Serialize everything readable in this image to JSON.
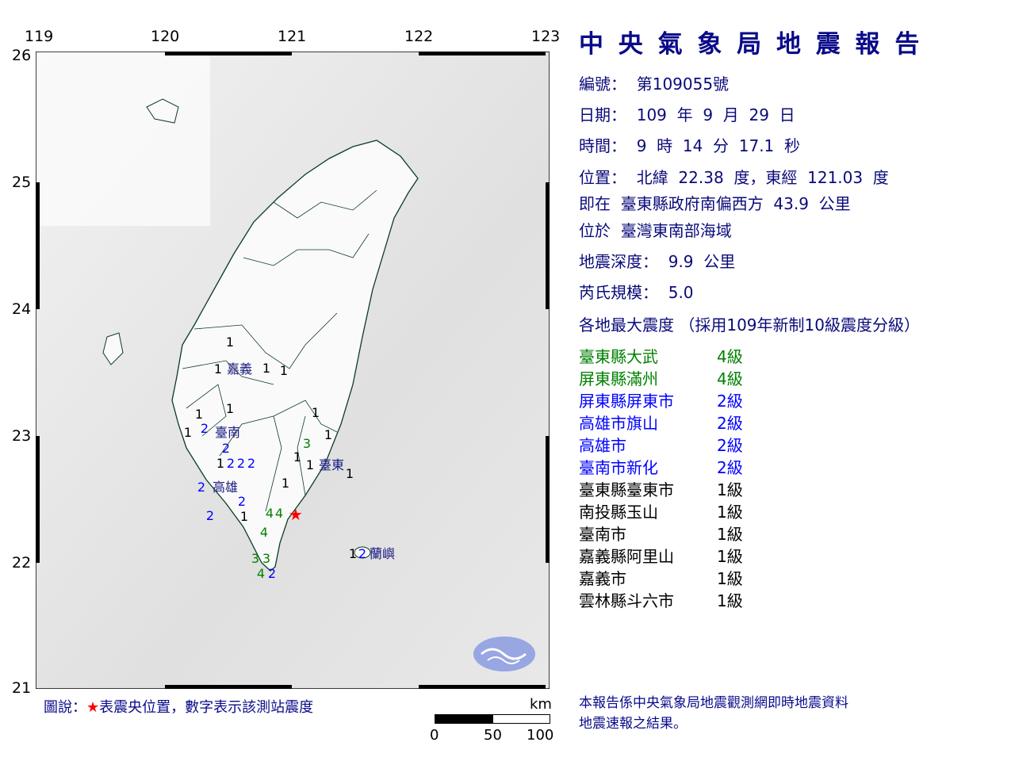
{
  "axes": {
    "lon_ticks": [
      "119",
      "120",
      "121",
      "122",
      "123"
    ],
    "lat_ticks": [
      "26",
      "25",
      "24",
      "23",
      "22",
      "21"
    ]
  },
  "report": {
    "title": "中 央 氣 象 局 地 震 報 告",
    "number": "編號：  第109055號",
    "date": "日期：  109  年  9  月  29  日",
    "time": "時間：  9  時  14  分  17.1  秒",
    "position": "位置：  北緯  22.38  度，東經  121.03  度",
    "relative": "即在  臺東縣政府南偏西方  43.9  公里",
    "region": "位於  臺灣東南部海域",
    "depth": "地震深度：  9.9  公里",
    "magnitude": "芮氏規模：  5.0",
    "intensity_header": "各地最大震度 （採用109年新制10級震度分級）"
  },
  "intensity_list": [
    {
      "place": "臺東縣大武",
      "level": "4級",
      "color": "#008000"
    },
    {
      "place": "屏東縣滿州",
      "level": "4級",
      "color": "#008000"
    },
    {
      "place": "屏東縣屏東市",
      "level": "2級",
      "color": "#0000ff"
    },
    {
      "place": "高雄市旗山",
      "level": "2級",
      "color": "#0000ff"
    },
    {
      "place": "高雄市",
      "level": "2級",
      "color": "#0000ff"
    },
    {
      "place": "臺南市新化",
      "level": "2級",
      "color": "#0000ff"
    },
    {
      "place": "臺東縣臺東市",
      "level": "1級",
      "color": "#000000"
    },
    {
      "place": "南投縣玉山",
      "level": "1級",
      "color": "#000000"
    },
    {
      "place": "臺南市",
      "level": "1級",
      "color": "#000000"
    },
    {
      "place": "嘉義縣阿里山",
      "level": "1級",
      "color": "#000000"
    },
    {
      "place": "嘉義市",
      "level": "1級",
      "color": "#000000"
    },
    {
      "place": "雲林縣斗六市",
      "level": "1級",
      "color": "#000000"
    }
  ],
  "map": {
    "epicenter": {
      "lat": 22.38,
      "lon": 121.03,
      "color": "#ff0000",
      "icon": "star"
    },
    "city_labels": [
      "嘉義",
      "臺南",
      "高雄",
      "臺東",
      "蘭嶼"
    ],
    "station_intensities": [
      "1",
      "1",
      "1",
      "1",
      "1",
      "1",
      "1",
      "2",
      "2",
      "1",
      "2",
      "2",
      "2",
      "2",
      "2",
      "2",
      "1",
      "1",
      "4",
      "4",
      "4",
      "3",
      "3",
      "4",
      "2",
      "3",
      "1",
      "1",
      "1",
      "1",
      "1",
      "1",
      "2"
    ],
    "intensity_colors": {
      "1": "#000000",
      "2": "#0000ff",
      "3": "#008000",
      "4": "#008000"
    },
    "logo": "cwb-logo"
  },
  "legend": {
    "prefix": "圖說：",
    "star": "★",
    "text": "表震央位置，數字表示該測站震度"
  },
  "scale_bar": {
    "unit": "km",
    "labels": [
      "0",
      "50",
      "100"
    ]
  },
  "footnote": [
    "本報告係中央氣象局地震觀測網即時地震資料",
    "地震速報之結果。"
  ]
}
